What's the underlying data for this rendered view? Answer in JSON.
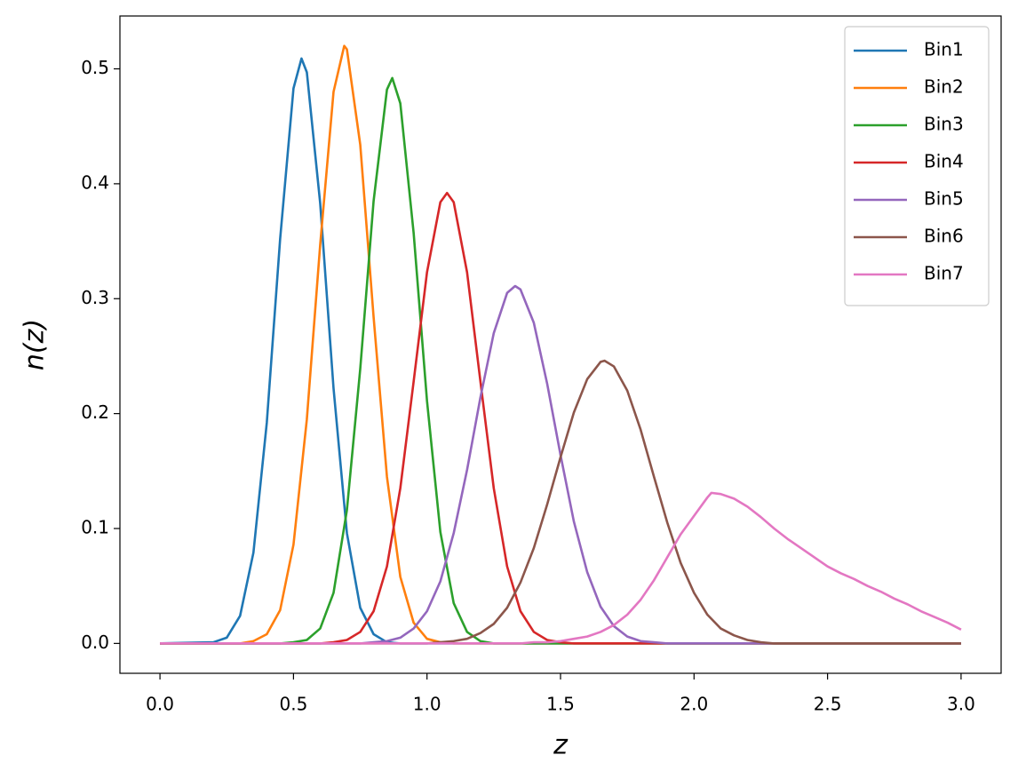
{
  "chart_data": {
    "type": "line",
    "xlabel": "z",
    "ylabel": "n(z)",
    "xlim": [
      -0.15,
      3.15
    ],
    "ylim": [
      -0.026,
      0.546
    ],
    "xticks": [
      {
        "value": 0,
        "label": "0.0"
      },
      0.5,
      {
        "value": 1,
        "label": "1.0"
      },
      1.5,
      {
        "value": 2,
        "label": "2.0"
      },
      2.5,
      {
        "value": 3,
        "label": "3.0"
      }
    ],
    "yticks": [
      {
        "value": 0,
        "label": "0.0"
      },
      0.1,
      0.2,
      0.3,
      0.4,
      0.5
    ],
    "grid": false,
    "legend": "upper right",
    "series": [
      {
        "name": "Bin1",
        "color": "#1f77b4",
        "x": [
          0,
          0.2,
          0.25,
          0.3,
          0.35,
          0.4,
          0.45,
          0.5,
          0.53,
          0.55,
          0.6,
          0.65,
          0.7,
          0.75,
          0.8,
          0.85,
          0.9,
          3
        ],
        "values": [
          0,
          0.001,
          0.005,
          0.024,
          0.079,
          0.192,
          0.352,
          0.483,
          0.509,
          0.497,
          0.383,
          0.222,
          0.096,
          0.031,
          0.008,
          0.001,
          0,
          0
        ]
      },
      {
        "name": "Bin2",
        "color": "#ff7f0e",
        "x": [
          0,
          0.3,
          0.35,
          0.4,
          0.45,
          0.5,
          0.55,
          0.6,
          0.65,
          0.69,
          0.7,
          0.75,
          0.8,
          0.85,
          0.9,
          0.95,
          1,
          1.05,
          1.1,
          3
        ],
        "values": [
          0,
          0,
          0.002,
          0.008,
          0.029,
          0.086,
          0.195,
          0.347,
          0.48,
          0.52,
          0.517,
          0.434,
          0.284,
          0.145,
          0.058,
          0.018,
          0.004,
          0.001,
          0,
          0
        ]
      },
      {
        "name": "Bin3",
        "color": "#2ca02c",
        "x": [
          0,
          0.45,
          0.5,
          0.55,
          0.6,
          0.65,
          0.7,
          0.75,
          0.8,
          0.85,
          0.87,
          0.9,
          0.95,
          1,
          1.05,
          1.1,
          1.15,
          1.2,
          1.25,
          3
        ],
        "values": [
          0,
          0,
          0.001,
          0.003,
          0.013,
          0.044,
          0.116,
          0.239,
          0.385,
          0.482,
          0.492,
          0.47,
          0.357,
          0.211,
          0.097,
          0.035,
          0.01,
          0.002,
          0,
          0
        ]
      },
      {
        "name": "Bin4",
        "color": "#d62728",
        "x": [
          0,
          0.6,
          0.65,
          0.7,
          0.75,
          0.8,
          0.85,
          0.9,
          0.95,
          1,
          1.05,
          1.075,
          1.1,
          1.15,
          1.2,
          1.25,
          1.3,
          1.35,
          1.4,
          1.45,
          1.5,
          1.55,
          3
        ],
        "values": [
          0,
          0,
          0.001,
          0.003,
          0.01,
          0.028,
          0.067,
          0.135,
          0.228,
          0.323,
          0.384,
          0.392,
          0.384,
          0.323,
          0.228,
          0.135,
          0.067,
          0.028,
          0.01,
          0.003,
          0.001,
          0,
          0
        ]
      },
      {
        "name": "Bin5",
        "color": "#9467bd",
        "x": [
          0,
          0.75,
          0.8,
          0.85,
          0.9,
          0.95,
          1,
          1.05,
          1.1,
          1.15,
          1.2,
          1.25,
          1.3,
          1.33,
          1.35,
          1.4,
          1.45,
          1.5,
          1.55,
          1.6,
          1.65,
          1.7,
          1.75,
          1.8,
          1.85,
          1.9,
          3
        ],
        "values": [
          0,
          0,
          0.001,
          0.002,
          0.005,
          0.013,
          0.028,
          0.054,
          0.096,
          0.151,
          0.214,
          0.27,
          0.305,
          0.311,
          0.308,
          0.279,
          0.226,
          0.164,
          0.106,
          0.062,
          0.032,
          0.015,
          0.006,
          0.002,
          0.001,
          0,
          0
        ]
      },
      {
        "name": "Bin6",
        "color": "#8c564b",
        "x": [
          0,
          1,
          1.05,
          1.1,
          1.15,
          1.2,
          1.25,
          1.3,
          1.35,
          1.4,
          1.45,
          1.5,
          1.55,
          1.6,
          1.65,
          1.665,
          1.7,
          1.75,
          1.8,
          1.85,
          1.9,
          1.95,
          2,
          2.05,
          2.1,
          2.15,
          2.2,
          2.25,
          2.3,
          3
        ],
        "values": [
          0,
          0,
          0.001,
          0.002,
          0.004,
          0.009,
          0.017,
          0.031,
          0.053,
          0.083,
          0.121,
          0.162,
          0.201,
          0.23,
          0.245,
          0.246,
          0.241,
          0.22,
          0.186,
          0.145,
          0.105,
          0.07,
          0.044,
          0.025,
          0.013,
          0.007,
          0.003,
          0.001,
          0,
          0
        ]
      },
      {
        "name": "Bin7",
        "color": "#e377c2",
        "x": [
          0,
          1.35,
          1.4,
          1.45,
          1.5,
          1.55,
          1.6,
          1.65,
          1.7,
          1.75,
          1.8,
          1.85,
          1.9,
          1.95,
          2,
          2.05,
          2.065,
          2.1,
          2.15,
          2.2,
          2.25,
          2.3,
          2.35,
          2.4,
          2.45,
          2.5,
          2.55,
          2.6,
          2.65,
          2.7,
          2.75,
          2.8,
          2.85,
          2.9,
          2.95,
          3
        ],
        "values": [
          0,
          0,
          0.001,
          0.001,
          0.002,
          0.004,
          0.006,
          0.01,
          0.016,
          0.025,
          0.038,
          0.055,
          0.075,
          0.095,
          0.111,
          0.127,
          0.131,
          0.13,
          0.126,
          0.119,
          0.11,
          0.1,
          0.091,
          0.083,
          0.075,
          0.067,
          0.061,
          0.056,
          0.05,
          0.045,
          0.039,
          0.034,
          0.028,
          0.023,
          0.018,
          0.012
        ]
      }
    ]
  }
}
